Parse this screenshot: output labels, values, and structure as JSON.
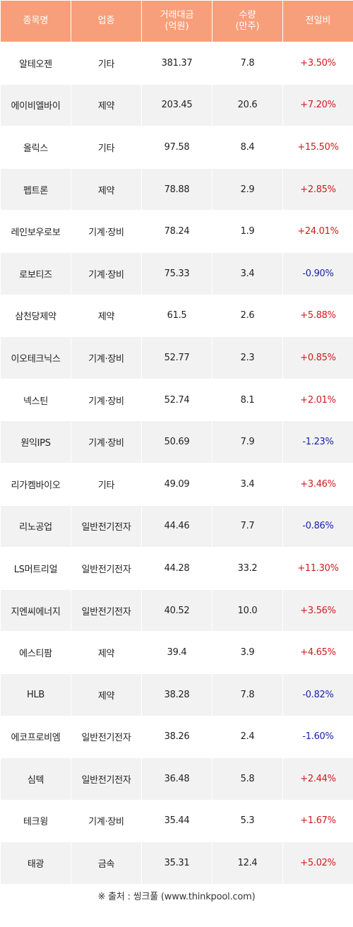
{
  "header": {
    "name": "종목명",
    "sector": "업종",
    "amount_line1": "거래대금",
    "amount_line2": "(억원)",
    "volume_line1": "수량",
    "volume_line2": "(만주)",
    "change": "전일비"
  },
  "rows": [
    {
      "name": "알테오젠",
      "sector": "기타",
      "amount": "381.37",
      "volume": "7.8",
      "change": "+3.50%",
      "dir": "up"
    },
    {
      "name": "에이비엘바이",
      "sector": "제약",
      "amount": "203.45",
      "volume": "20.6",
      "change": "+7.20%",
      "dir": "up"
    },
    {
      "name": "올릭스",
      "sector": "기타",
      "amount": "97.58",
      "volume": "8.4",
      "change": "+15.50%",
      "dir": "up"
    },
    {
      "name": "펩트론",
      "sector": "제약",
      "amount": "78.88",
      "volume": "2.9",
      "change": "+2.85%",
      "dir": "up"
    },
    {
      "name": "레인보우로보",
      "sector": "기계·장비",
      "amount": "78.24",
      "volume": "1.9",
      "change": "+24.01%",
      "dir": "up"
    },
    {
      "name": "로보티즈",
      "sector": "기계·장비",
      "amount": "75.33",
      "volume": "3.4",
      "change": "-0.90%",
      "dir": "down"
    },
    {
      "name": "삼천당제약",
      "sector": "제약",
      "amount": "61.5",
      "volume": "2.6",
      "change": "+5.88%",
      "dir": "up"
    },
    {
      "name": "이오테크닉스",
      "sector": "기계·장비",
      "amount": "52.77",
      "volume": "2.3",
      "change": "+0.85%",
      "dir": "up"
    },
    {
      "name": "넥스틴",
      "sector": "기계·장비",
      "amount": "52.74",
      "volume": "8.1",
      "change": "+2.01%",
      "dir": "up"
    },
    {
      "name": "원익IPS",
      "sector": "기계·장비",
      "amount": "50.69",
      "volume": "7.9",
      "change": "-1.23%",
      "dir": "down"
    },
    {
      "name": "리가켐바이오",
      "sector": "기타",
      "amount": "49.09",
      "volume": "3.4",
      "change": "+3.46%",
      "dir": "up"
    },
    {
      "name": "리노공업",
      "sector": "일반전기전자",
      "amount": "44.46",
      "volume": "7.7",
      "change": "-0.86%",
      "dir": "down"
    },
    {
      "name": "LS머트리얼",
      "sector": "일반전기전자",
      "amount": "44.28",
      "volume": "33.2",
      "change": "+11.30%",
      "dir": "up"
    },
    {
      "name": "지엔씨에너지",
      "sector": "일반전기전자",
      "amount": "40.52",
      "volume": "10.0",
      "change": "+3.56%",
      "dir": "up"
    },
    {
      "name": "에스티팜",
      "sector": "제약",
      "amount": "39.4",
      "volume": "3.9",
      "change": "+4.65%",
      "dir": "up"
    },
    {
      "name": "HLB",
      "sector": "제약",
      "amount": "38.28",
      "volume": "7.8",
      "change": "-0.82%",
      "dir": "down"
    },
    {
      "name": "에코프로비엠",
      "sector": "일반전기전자",
      "amount": "38.26",
      "volume": "2.4",
      "change": "-1.60%",
      "dir": "down"
    },
    {
      "name": "심텍",
      "sector": "일반전기전자",
      "amount": "36.48",
      "volume": "5.8",
      "change": "+2.44%",
      "dir": "up"
    },
    {
      "name": "테크윙",
      "sector": "기계·장비",
      "amount": "35.44",
      "volume": "5.3",
      "change": "+1.67%",
      "dir": "up"
    },
    {
      "name": "태광",
      "sector": "금속",
      "amount": "35.31",
      "volume": "12.4",
      "change": "+5.02%",
      "dir": "up"
    }
  ],
  "source": "※ 출처 : 씽크풀 (www.thinkpool.com)",
  "colors": {
    "header_bg": "#f79f7a",
    "up": "#d0191d",
    "down": "#1a23a8",
    "row_alt": "#f2f2f2"
  }
}
